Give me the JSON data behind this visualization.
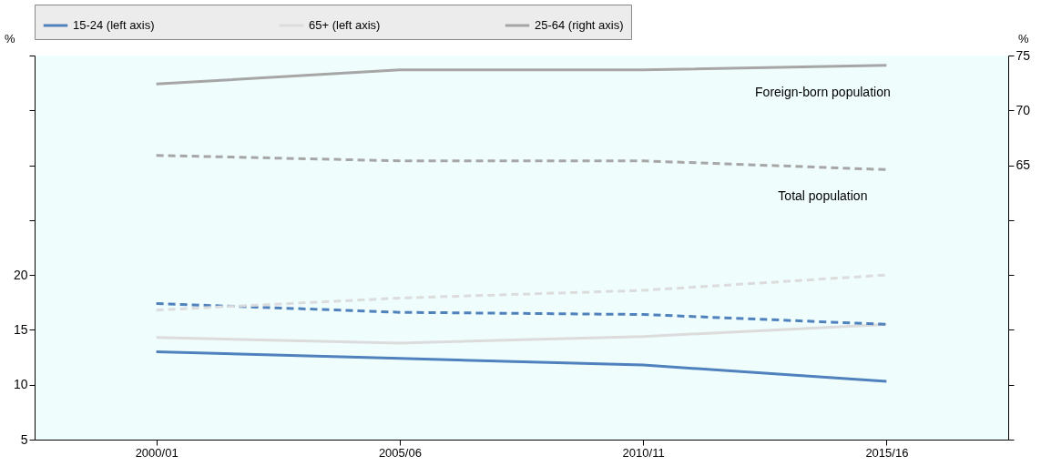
{
  "chart_data": {
    "type": "line",
    "categories": [
      "2000/01",
      "2005/06",
      "2010/11",
      "2015/16"
    ],
    "ylabel": "%",
    "y2label": "%",
    "ylim": [
      5,
      40
    ],
    "yticks": [
      5,
      10,
      15,
      20,
      {
        "value": 25,
        "label": null
      },
      {
        "value": 30,
        "label": null
      },
      {
        "value": 35,
        "label": null
      },
      {
        "value": 40,
        "label": null
      }
    ],
    "y2lim": [
      40,
      75
    ],
    "y2ticks": [
      {
        "value": 40,
        "label": null
      },
      {
        "value": 45,
        "label": null
      },
      {
        "value": 50,
        "label": null
      },
      {
        "value": 55,
        "label": null
      },
      {
        "value": 60,
        "label": null
      },
      65,
      70,
      75
    ],
    "legend": "top",
    "grid": false,
    "series": [
      {
        "name": "15-24 (left axis)",
        "color": "#4f81bd",
        "values": [
          13.0,
          12.4,
          11.8,
          10.3
        ],
        "line_style": "solid"
      },
      {
        "name": "65+ (left axis)",
        "color": "#dcdcdc",
        "values": [
          14.3,
          13.8,
          14.4,
          15.5
        ],
        "line_style": "solid"
      },
      {
        "name": "25-64 (right axis)",
        "color": "#a6a6a6",
        "values": [
          72.4,
          73.7,
          73.7,
          74.1
        ],
        "axis": "y2",
        "line_style": "solid"
      },
      {
        "color": "#4f81bd",
        "values": [
          17.4,
          16.6,
          16.4,
          15.5
        ],
        "line_style": "dashed"
      },
      {
        "color": "#dcdcdc",
        "values": [
          16.8,
          17.9,
          18.6,
          20.0
        ],
        "line_style": "dashed"
      },
      {
        "color": "#a6a6a6",
        "values": [
          65.9,
          65.4,
          65.4,
          64.6
        ],
        "axis": "y2",
        "line_style": "dashed"
      }
    ],
    "annotations": [
      "Foreign-born population",
      "Total population"
    ]
  }
}
